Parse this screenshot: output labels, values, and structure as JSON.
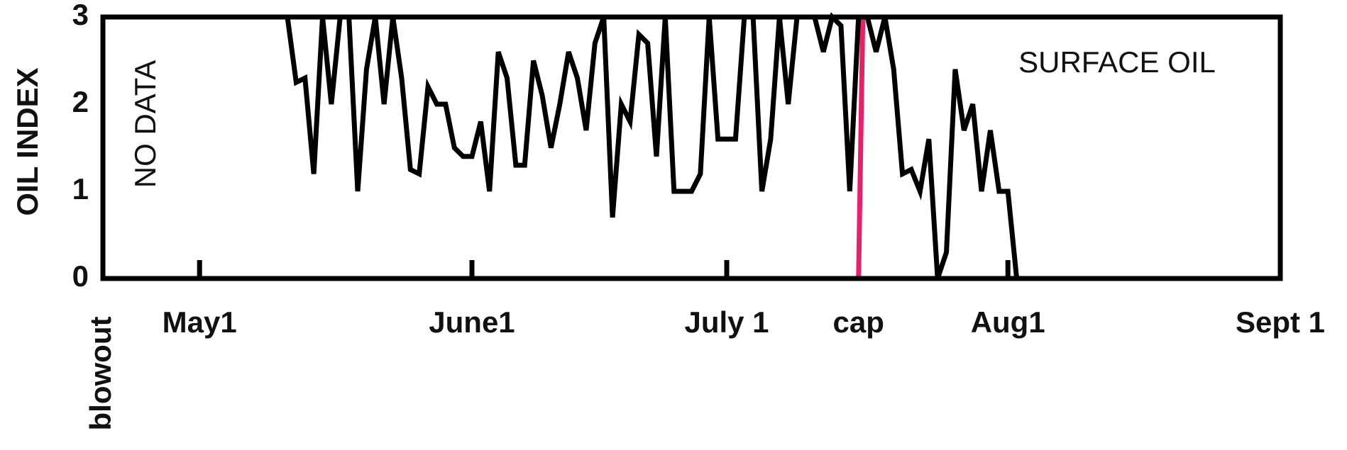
{
  "chart_data": {
    "type": "line",
    "y_label": "OIL INDEX",
    "annotations": [
      "NO DATA",
      "SURFACE OIL"
    ],
    "x": [
      21,
      22,
      23,
      24,
      25,
      26,
      27,
      28,
      29,
      30,
      31,
      32,
      33,
      34,
      35,
      36,
      37,
      38,
      39,
      40,
      41,
      42,
      43,
      44,
      45,
      46,
      47,
      48,
      49,
      50,
      51,
      52,
      53,
      54,
      55,
      56,
      57,
      58,
      59,
      60,
      61,
      62,
      63,
      64,
      65,
      66,
      67,
      68,
      69,
      70,
      71,
      72,
      73,
      74,
      75,
      76,
      77,
      78,
      79,
      80,
      81,
      82,
      83,
      84,
      85,
      86,
      87,
      88,
      89,
      90,
      91,
      92,
      93,
      94,
      95,
      96,
      97,
      98,
      99,
      100,
      101,
      102,
      103,
      104
    ],
    "series": [
      {
        "color": "#000000",
        "values": [
          3,
          2.25,
          2.3,
          1.2,
          3,
          2,
          3,
          3,
          1,
          2.4,
          3,
          2,
          3,
          2.3,
          1.25,
          1.2,
          2.2,
          2,
          2,
          1.5,
          1.4,
          1.4,
          1.8,
          1,
          2.6,
          2.3,
          1.3,
          1.3,
          2.5,
          2.1,
          1.5,
          2,
          2.6,
          2.3,
          1.7,
          2.7,
          3,
          0.7,
          2,
          1.8,
          2.8,
          2.7,
          1.4,
          3,
          1,
          1,
          1,
          1.2,
          3,
          1.6,
          1.6,
          1.6,
          3,
          3,
          1,
          1.6,
          3,
          2,
          3,
          3,
          3,
          2.6,
          3,
          2.9,
          1,
          3,
          3,
          2.6,
          3,
          2.4,
          1.2,
          1.25,
          1,
          1.6,
          0,
          0.3,
          2.4,
          1.7,
          2,
          1,
          1.7,
          1,
          1,
          0
        ]
      }
    ],
    "xlim": [
      0,
      134
    ],
    "xticks": [
      {
        "value": 0,
        "label": "blowout"
      },
      {
        "value": 11,
        "label": "May1"
      },
      {
        "value": 42,
        "label": "June1"
      },
      {
        "value": 71,
        "label": "July 1"
      },
      {
        "value": 86,
        "label": "cap"
      },
      {
        "value": 103,
        "label": "Aug1"
      },
      {
        "value": 134,
        "label": "Sept 1"
      }
    ],
    "ylim": [
      0,
      3
    ],
    "yticks": [
      0,
      1,
      2,
      3
    ],
    "cap_line_color": "#e8206a",
    "grid": false
  }
}
